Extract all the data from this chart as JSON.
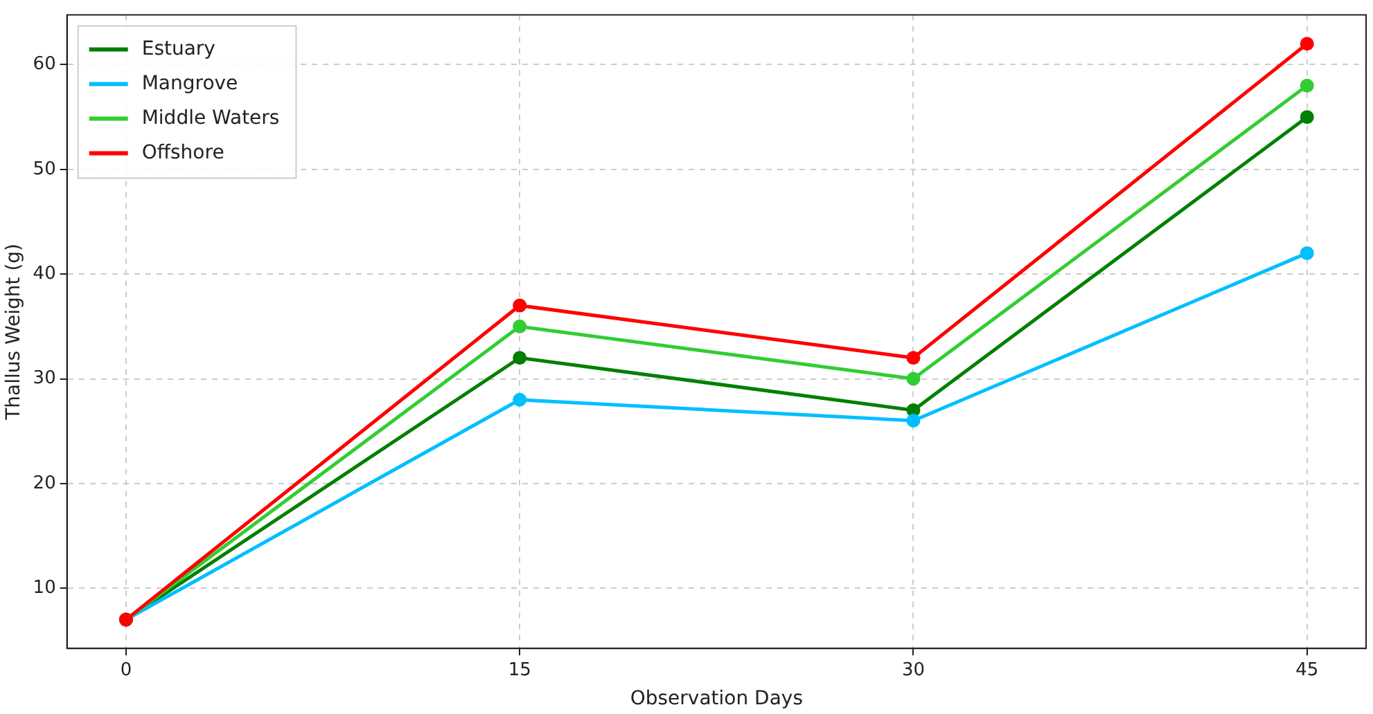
{
  "chart_data": {
    "type": "line",
    "xlabel": "Observation Days",
    "ylabel": "Thallus Weight (g)",
    "x": [
      0,
      15,
      30,
      45
    ],
    "series": [
      {
        "name": "Estuary",
        "color": "#008000",
        "values": [
          7,
          32,
          27,
          55
        ]
      },
      {
        "name": "Mangrove",
        "color": "#00bfff",
        "values": [
          7,
          28,
          26,
          42
        ]
      },
      {
        "name": "Middle Waters",
        "color": "#32cd32",
        "values": [
          7,
          35,
          30,
          58
        ]
      },
      {
        "name": "Offshore",
        "color": "#ff0000",
        "values": [
          7,
          37,
          32,
          62
        ]
      }
    ],
    "xlim": [
      -2.25,
      47.25
    ],
    "xticks": [
      0,
      15,
      30,
      45
    ],
    "ylim": [
      4.25,
      64.75
    ],
    "yticks": [
      10,
      20,
      30,
      40,
      50,
      60
    ],
    "grid": true,
    "legend": "top left",
    "marker": "circle",
    "line_style": "solid"
  }
}
